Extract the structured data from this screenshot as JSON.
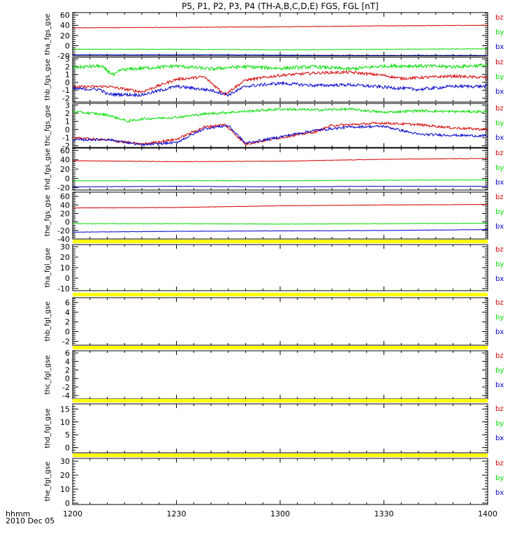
{
  "title": "P5, P1, P2, P3, P4 (TH-A,B,C,D,E) FGS, FGL [nT]",
  "footer": {
    "time_label": "hhmm",
    "date_label": "2010 Dec 05"
  },
  "colors": {
    "bz": "#d40000",
    "by": "#00dd00",
    "bx": "#0000cc",
    "flag": "#ffff00",
    "axis": "#000000"
  },
  "chart_data": {
    "type": "line",
    "x_ticks": [
      "1200",
      "1230",
      "1300",
      "1330",
      "1400"
    ],
    "x_range_minutes": [
      0,
      120
    ],
    "panels": [
      {
        "ylabel": "tha_fgs_gse",
        "ylim": [
          -20,
          65
        ],
        "ticks": [
          "60",
          "40",
          "20",
          "0",
          "-20"
        ],
        "tick_values": [
          60,
          40,
          20,
          0,
          -20
        ],
        "legend": [
          "bz",
          "by",
          "bx"
        ],
        "series": [
          {
            "name": "bz",
            "color": "#d40000",
            "noise": 0.5,
            "points": [
              [
                0,
                35
              ],
              [
                30,
                36
              ],
              [
                60,
                37
              ],
              [
                90,
                39
              ],
              [
                120,
                40
              ]
            ]
          },
          {
            "name": "by",
            "color": "#00dd00",
            "noise": 0.5,
            "points": [
              [
                0,
                -7
              ],
              [
                30,
                -7
              ],
              [
                60,
                -8
              ],
              [
                90,
                -7
              ],
              [
                120,
                -6
              ]
            ]
          },
          {
            "name": "bx",
            "color": "#0000cc",
            "noise": 0.4,
            "points": [
              [
                0,
                -18
              ],
              [
                40,
                -18
              ],
              [
                80,
                -19
              ],
              [
                120,
                -19
              ]
            ]
          }
        ]
      },
      {
        "ylabel": "thb_fgs_gse",
        "ylim": [
          -2.5,
          3.2
        ],
        "ticks": [
          "3",
          "2",
          "1",
          "0",
          "-1",
          "-2"
        ],
        "tick_values": [
          3,
          2,
          1,
          0,
          -1,
          -2
        ],
        "legend": [
          "bz",
          "by",
          "bx"
        ],
        "series": [
          {
            "name": "bz",
            "color": "#d40000",
            "noise": 0.18,
            "points": [
              [
                0,
                -0.6
              ],
              [
                10,
                -0.5
              ],
              [
                20,
                -1.2
              ],
              [
                30,
                0.4
              ],
              [
                38,
                0.7
              ],
              [
                44,
                -1.5
              ],
              [
                50,
                0.3
              ],
              [
                60,
                0.9
              ],
              [
                70,
                1.2
              ],
              [
                80,
                1.3
              ],
              [
                90,
                0.9
              ],
              [
                95,
                0.5
              ],
              [
                100,
                0.6
              ],
              [
                110,
                0.8
              ],
              [
                120,
                0.6
              ]
            ]
          },
          {
            "name": "by",
            "color": "#00dd00",
            "noise": 0.22,
            "points": [
              [
                0,
                1.9
              ],
              [
                8,
                2.1
              ],
              [
                12,
                0.9
              ],
              [
                14,
                1.6
              ],
              [
                20,
                1.8
              ],
              [
                30,
                2.1
              ],
              [
                40,
                1.7
              ],
              [
                45,
                1.9
              ],
              [
                50,
                2.0
              ],
              [
                60,
                1.8
              ],
              [
                70,
                2.0
              ],
              [
                80,
                1.7
              ],
              [
                90,
                2.1
              ],
              [
                100,
                2.1
              ],
              [
                110,
                2.0
              ],
              [
                120,
                2.2
              ]
            ]
          },
          {
            "name": "bx",
            "color": "#0000cc",
            "noise": 0.2,
            "points": [
              [
                0,
                -0.8
              ],
              [
                8,
                -0.9
              ],
              [
                10,
                -1.5
              ],
              [
                20,
                -1.6
              ],
              [
                30,
                -0.5
              ],
              [
                40,
                -1.0
              ],
              [
                45,
                -1.6
              ],
              [
                50,
                -0.5
              ],
              [
                60,
                -0.1
              ],
              [
                70,
                -0.4
              ],
              [
                80,
                -0.3
              ],
              [
                90,
                -0.6
              ],
              [
                100,
                -0.9
              ],
              [
                110,
                -0.5
              ],
              [
                120,
                -0.5
              ]
            ]
          }
        ]
      },
      {
        "ylabel": "thc_fgs_gse",
        "ylim": [
          -2.2,
          3.2
        ],
        "ticks": [
          "3",
          "2",
          "1",
          "0",
          "-1",
          "-2"
        ],
        "tick_values": [
          3,
          2,
          1,
          0,
          -1,
          -2
        ],
        "legend": [
          "bz",
          "by",
          "bx"
        ],
        "series": [
          {
            "name": "bz",
            "color": "#d40000",
            "noise": 0.15,
            "points": [
              [
                0,
                -1.0
              ],
              [
                10,
                -1.3
              ],
              [
                20,
                -1.8
              ],
              [
                30,
                -1.2
              ],
              [
                38,
                0.3
              ],
              [
                44,
                0.6
              ],
              [
                50,
                -1.8
              ],
              [
                60,
                -1.0
              ],
              [
                70,
                -0.3
              ],
              [
                75,
                0.5
              ],
              [
                90,
                0.8
              ],
              [
                100,
                0.6
              ],
              [
                110,
                0.2
              ],
              [
                120,
                0.0
              ]
            ]
          },
          {
            "name": "by",
            "color": "#00dd00",
            "noise": 0.15,
            "points": [
              [
                0,
                2.2
              ],
              [
                10,
                1.8
              ],
              [
                16,
                1.0
              ],
              [
                20,
                1.3
              ],
              [
                30,
                1.5
              ],
              [
                38,
                1.9
              ],
              [
                45,
                2.1
              ],
              [
                60,
                2.5
              ],
              [
                70,
                2.4
              ],
              [
                80,
                2.5
              ],
              [
                90,
                2.1
              ],
              [
                100,
                2.3
              ],
              [
                110,
                2.2
              ],
              [
                120,
                2.2
              ]
            ]
          },
          {
            "name": "bx",
            "color": "#0000cc",
            "noise": 0.15,
            "points": [
              [
                0,
                -1.3
              ],
              [
                10,
                -1.2
              ],
              [
                20,
                -1.9
              ],
              [
                30,
                -1.6
              ],
              [
                38,
                0.1
              ],
              [
                45,
                0.5
              ],
              [
                50,
                -1.7
              ],
              [
                60,
                -0.9
              ],
              [
                70,
                -0.1
              ],
              [
                80,
                0.3
              ],
              [
                90,
                0.4
              ],
              [
                100,
                -0.6
              ],
              [
                110,
                -0.7
              ],
              [
                120,
                -0.8
              ]
            ]
          }
        ]
      },
      {
        "ylabel": "thd_fgs_gse",
        "ylim": [
          -25,
          65
        ],
        "ticks": [
          "60",
          "40",
          "20",
          "0",
          "-20"
        ],
        "tick_values": [
          60,
          40,
          20,
          0,
          -20
        ],
        "legend": [
          "bz",
          "by",
          "bx"
        ],
        "series": [
          {
            "name": "bz",
            "color": "#d40000",
            "noise": 0.5,
            "points": [
              [
                0,
                38
              ],
              [
                30,
                36
              ],
              [
                60,
                37
              ],
              [
                90,
                41
              ],
              [
                120,
                43
              ]
            ]
          },
          {
            "name": "by",
            "color": "#00dd00",
            "noise": 0.5,
            "points": [
              [
                0,
                -5
              ],
              [
                30,
                -5
              ],
              [
                60,
                -5
              ],
              [
                90,
                -4
              ],
              [
                120,
                -3
              ]
            ]
          },
          {
            "name": "bx",
            "color": "#0000cc",
            "noise": 0.4,
            "points": [
              [
                0,
                -18
              ],
              [
                30,
                -17
              ],
              [
                60,
                -18
              ],
              [
                90,
                -17
              ],
              [
                120,
                -17
              ]
            ]
          }
        ]
      },
      {
        "ylabel": "the_fgs_gse",
        "ylim": [
          -40,
          70
        ],
        "ticks": [
          "60",
          "40",
          "20",
          "0",
          "-20",
          "-40"
        ],
        "tick_values": [
          60,
          40,
          20,
          0,
          -20,
          -40
        ],
        "legend": [
          "bz",
          "by",
          "bx"
        ],
        "series": [
          {
            "name": "bz",
            "color": "#d40000",
            "noise": 0.5,
            "points": [
              [
                0,
                33
              ],
              [
                30,
                34
              ],
              [
                60,
                38
              ],
              [
                90,
                40
              ],
              [
                120,
                41
              ]
            ]
          },
          {
            "name": "by",
            "color": "#00dd00",
            "noise": 0.5,
            "points": [
              [
                0,
                -4
              ],
              [
                30,
                -4
              ],
              [
                60,
                -5
              ],
              [
                90,
                -4
              ],
              [
                120,
                -3
              ]
            ]
          },
          {
            "name": "bx",
            "color": "#0000cc",
            "noise": 0.4,
            "points": [
              [
                0,
                -24
              ],
              [
                30,
                -22
              ],
              [
                60,
                -21
              ],
              [
                90,
                -20
              ],
              [
                120,
                -18
              ]
            ]
          }
        ]
      },
      {
        "ylabel": "tha_fgl_gse",
        "ylim": [
          -12,
          32
        ],
        "ticks": [
          "30",
          "20",
          "10",
          "0",
          "-10"
        ],
        "tick_values": [
          30,
          20,
          10,
          0,
          -10
        ],
        "legend": [
          "bz",
          "by",
          "bx"
        ],
        "series": []
      },
      {
        "ylabel": "thb_fgl_gse",
        "ylim": [
          -2.8,
          7
        ],
        "ticks": [
          "6",
          "4",
          "2",
          "0",
          "-2"
        ],
        "tick_values": [
          6,
          4,
          2,
          0,
          -2
        ],
        "legend": [
          "bz",
          "by",
          "bx"
        ],
        "series": []
      },
      {
        "ylabel": "thc_fgl_gse",
        "ylim": [
          -4.8,
          6.5
        ],
        "ticks": [
          "6",
          "4",
          "2",
          "0",
          "-2",
          "-4"
        ],
        "tick_values": [
          6,
          4,
          2,
          0,
          -2,
          -4
        ],
        "legend": [
          "bz",
          "by",
          "bx"
        ],
        "series": []
      },
      {
        "ylabel": "thd_fgl_gse",
        "ylim": [
          -2,
          17
        ],
        "ticks": [
          "15",
          "10",
          "5",
          "0"
        ],
        "tick_values": [
          15,
          10,
          5,
          0
        ],
        "legend": [
          "bz",
          "by",
          "bx"
        ],
        "series": []
      },
      {
        "ylabel": "the_fgl_gse",
        "ylim": [
          -1,
          32
        ],
        "ticks": [
          "30",
          "20",
          "10",
          "0"
        ],
        "tick_values": [
          30,
          20,
          10,
          0
        ],
        "legend": [
          "bz",
          "by",
          "bx"
        ],
        "series": []
      }
    ]
  }
}
